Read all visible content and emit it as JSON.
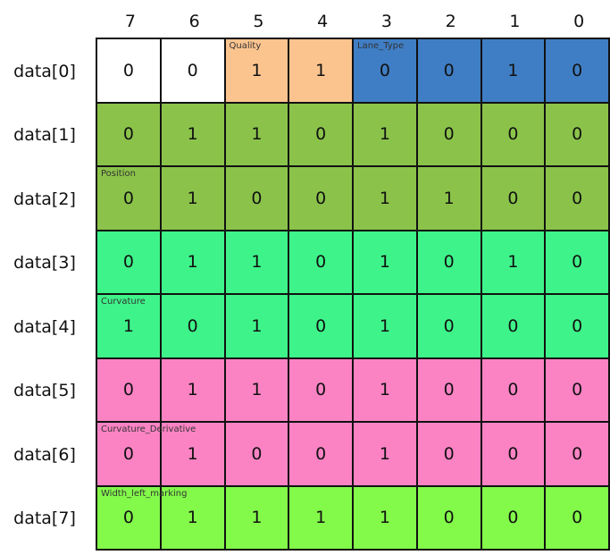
{
  "col_headers": [
    "7",
    "6",
    "5",
    "4",
    "3",
    "2",
    "1",
    "0"
  ],
  "row_headers": [
    "data[0]",
    "data[1]",
    "data[2]",
    "data[3]",
    "data[4]",
    "data[5]",
    "data[6]",
    "data[7]"
  ],
  "colors": {
    "white": "#ffffff",
    "quality": "#fbc48f",
    "lane_type": "#3f7ec4",
    "position": "#8bc34a",
    "curvature": "#3ef48a",
    "curvature_derivative": "#fb83c4",
    "width_left_marking": "#83f94a",
    "grid_line": "#111111"
  },
  "fields": [
    {
      "label": "Quality",
      "row": 0,
      "col": 2
    },
    {
      "label": "Lane_Type",
      "row": 0,
      "col": 4
    },
    {
      "label": "Position",
      "row": 2,
      "col": 0
    },
    {
      "label": "Curvature",
      "row": 4,
      "col": 0
    },
    {
      "label": "Curvature_Derivative",
      "row": 6,
      "col": 0
    },
    {
      "label": "Width_left_marking",
      "row": 7,
      "col": 0
    }
  ],
  "rows": [
    {
      "values": [
        "0",
        "0",
        "1",
        "1",
        "0",
        "0",
        "1",
        "0"
      ],
      "colors": [
        "white",
        "white",
        "quality",
        "quality",
        "lane_type",
        "lane_type",
        "lane_type",
        "lane_type"
      ]
    },
    {
      "values": [
        "0",
        "1",
        "1",
        "0",
        "1",
        "0",
        "0",
        "0"
      ],
      "colors": [
        "position",
        "position",
        "position",
        "position",
        "position",
        "position",
        "position",
        "position"
      ]
    },
    {
      "values": [
        "0",
        "1",
        "0",
        "0",
        "1",
        "1",
        "0",
        "0"
      ],
      "colors": [
        "position",
        "position",
        "position",
        "position",
        "position",
        "position",
        "position",
        "position"
      ]
    },
    {
      "values": [
        "0",
        "1",
        "1",
        "0",
        "1",
        "0",
        "1",
        "0"
      ],
      "colors": [
        "curvature",
        "curvature",
        "curvature",
        "curvature",
        "curvature",
        "curvature",
        "curvature",
        "curvature"
      ]
    },
    {
      "values": [
        "1",
        "0",
        "1",
        "0",
        "1",
        "0",
        "0",
        "0"
      ],
      "colors": [
        "curvature",
        "curvature",
        "curvature",
        "curvature",
        "curvature",
        "curvature",
        "curvature",
        "curvature"
      ]
    },
    {
      "values": [
        "0",
        "1",
        "1",
        "0",
        "1",
        "0",
        "0",
        "0"
      ],
      "colors": [
        "curvature_derivative",
        "curvature_derivative",
        "curvature_derivative",
        "curvature_derivative",
        "curvature_derivative",
        "curvature_derivative",
        "curvature_derivative",
        "curvature_derivative"
      ]
    },
    {
      "values": [
        "0",
        "1",
        "0",
        "0",
        "1",
        "0",
        "0",
        "0"
      ],
      "colors": [
        "curvature_derivative",
        "curvature_derivative",
        "curvature_derivative",
        "curvature_derivative",
        "curvature_derivative",
        "curvature_derivative",
        "curvature_derivative",
        "curvature_derivative"
      ]
    },
    {
      "values": [
        "0",
        "1",
        "1",
        "1",
        "1",
        "0",
        "0",
        "0"
      ],
      "colors": [
        "width_left_marking",
        "width_left_marking",
        "width_left_marking",
        "width_left_marking",
        "width_left_marking",
        "width_left_marking",
        "width_left_marking",
        "width_left_marking"
      ]
    }
  ]
}
